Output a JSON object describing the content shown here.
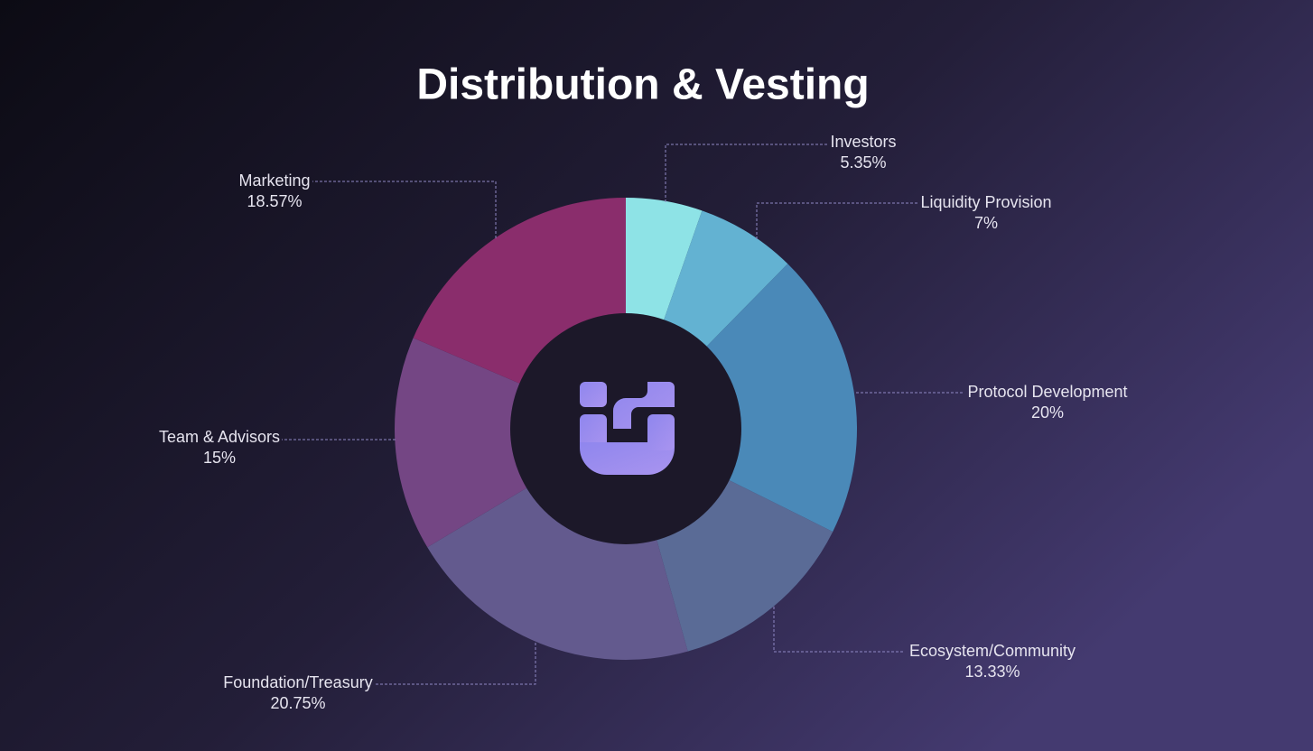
{
  "chart_data": {
    "type": "donut",
    "title": "Distribution & Vesting",
    "categories": [
      "Investors",
      "Liquidity Provision",
      "Protocol Development",
      "Ecosystem/Community",
      "Foundation/Treasury",
      "Team & Advisors",
      "Marketing"
    ],
    "values": [
      5.35,
      7,
      20,
      13.33,
      20.75,
      15,
      18.57
    ],
    "value_labels": [
      "5.35%",
      "7%",
      "20%",
      "13.33%",
      "20.75%",
      "15%",
      "18.57%"
    ],
    "colors": [
      "#8ee3e6",
      "#63b2d2",
      "#4a89b8",
      "#5a6b96",
      "#635a8e",
      "#744684",
      "#8a2d6c"
    ]
  }
}
